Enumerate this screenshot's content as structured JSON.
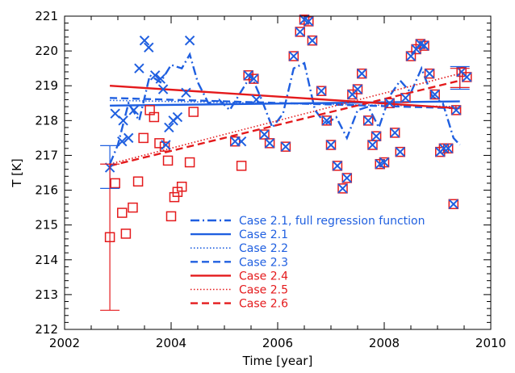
{
  "chart_data": {
    "type": "scatter",
    "xlabel": "Time [year]",
    "ylabel": "T [K]",
    "xlim": [
      2002,
      2010
    ],
    "ylim": [
      212,
      221
    ],
    "xticks": [
      2002,
      2004,
      2006,
      2008,
      2010
    ],
    "yticks": [
      212,
      213,
      214,
      215,
      216,
      217,
      218,
      219,
      220,
      221
    ],
    "colors": {
      "blue": "#1f5fe0",
      "red": "#e41a1c"
    },
    "error_bars": [
      {
        "color": "blue",
        "x": 2002.85,
        "low": 216.05,
        "high": 217.28
      },
      {
        "color": "red",
        "x": 2002.85,
        "low": 212.55,
        "high": 216.75
      },
      {
        "color": "blue",
        "x": 2009.42,
        "low": 218.9,
        "high": 219.55
      },
      {
        "color": "red",
        "x": 2009.42,
        "low": 218.95,
        "high": 219.5
      }
    ],
    "markers": {
      "blue_x": [
        [
          2002.85,
          216.65
        ],
        [
          2002.95,
          218.2
        ],
        [
          2003.08,
          217.4
        ],
        [
          2003.1,
          218.0
        ],
        [
          2003.2,
          217.5
        ],
        [
          2003.3,
          218.3
        ],
        [
          2003.4,
          219.5
        ],
        [
          2003.5,
          220.3
        ],
        [
          2003.58,
          220.1
        ],
        [
          2003.7,
          219.3
        ],
        [
          2003.8,
          219.2
        ],
        [
          2003.85,
          218.9
        ],
        [
          2003.9,
          217.3
        ],
        [
          2003.96,
          217.8
        ],
        [
          2004.04,
          218.0
        ],
        [
          2004.12,
          218.1
        ],
        [
          2004.28,
          218.8
        ],
        [
          2004.35,
          220.3
        ],
        [
          2005.2,
          217.4
        ],
        [
          2005.32,
          217.4
        ],
        [
          2005.45,
          219.3
        ],
        [
          2005.55,
          219.2
        ],
        [
          2005.6,
          218.6
        ],
        [
          2005.75,
          217.6
        ],
        [
          2005.85,
          217.35
        ],
        [
          2006.15,
          217.25
        ],
        [
          2006.3,
          219.85
        ],
        [
          2006.42,
          220.55
        ],
        [
          2006.5,
          220.9
        ],
        [
          2006.58,
          220.85
        ],
        [
          2006.65,
          220.3
        ],
        [
          2006.82,
          218.85
        ],
        [
          2006.92,
          218.0
        ],
        [
          2007.0,
          217.3
        ],
        [
          2007.12,
          216.7
        ],
        [
          2007.22,
          216.05
        ],
        [
          2007.3,
          216.35
        ],
        [
          2007.4,
          218.75
        ],
        [
          2007.5,
          218.9
        ],
        [
          2007.58,
          219.35
        ],
        [
          2007.7,
          218.0
        ],
        [
          2007.78,
          217.3
        ],
        [
          2007.85,
          217.55
        ],
        [
          2007.92,
          216.75
        ],
        [
          2008.0,
          216.8
        ],
        [
          2008.1,
          218.5
        ],
        [
          2008.2,
          217.65
        ],
        [
          2008.3,
          217.1
        ],
        [
          2008.4,
          218.65
        ],
        [
          2008.5,
          219.85
        ],
        [
          2008.6,
          220.05
        ],
        [
          2008.68,
          220.2
        ],
        [
          2008.75,
          220.15
        ],
        [
          2008.85,
          219.35
        ],
        [
          2008.95,
          218.75
        ],
        [
          2009.05,
          217.1
        ],
        [
          2009.12,
          217.2
        ],
        [
          2009.2,
          217.2
        ],
        [
          2009.3,
          215.6
        ],
        [
          2009.35,
          218.3
        ],
        [
          2009.45,
          219.4
        ],
        [
          2009.55,
          219.25
        ]
      ],
      "red_square": [
        [
          2002.85,
          214.65
        ],
        [
          2002.95,
          216.2
        ],
        [
          2003.08,
          215.35
        ],
        [
          2003.15,
          214.75
        ],
        [
          2003.28,
          215.5
        ],
        [
          2003.38,
          216.25
        ],
        [
          2003.48,
          217.5
        ],
        [
          2003.6,
          218.3
        ],
        [
          2003.68,
          218.1
        ],
        [
          2003.78,
          217.35
        ],
        [
          2003.88,
          217.25
        ],
        [
          2003.94,
          216.85
        ],
        [
          2004.0,
          215.25
        ],
        [
          2004.06,
          215.8
        ],
        [
          2004.12,
          215.95
        ],
        [
          2004.2,
          216.1
        ],
        [
          2004.35,
          216.8
        ],
        [
          2004.42,
          218.25
        ],
        [
          2005.2,
          217.4
        ],
        [
          2005.32,
          216.7
        ],
        [
          2005.45,
          219.3
        ],
        [
          2005.55,
          219.2
        ],
        [
          2005.75,
          217.6
        ],
        [
          2005.85,
          217.35
        ],
        [
          2006.15,
          217.25
        ],
        [
          2006.3,
          219.85
        ],
        [
          2006.42,
          220.55
        ],
        [
          2006.5,
          220.9
        ],
        [
          2006.58,
          220.85
        ],
        [
          2006.65,
          220.3
        ],
        [
          2006.82,
          218.85
        ],
        [
          2006.92,
          218.0
        ],
        [
          2007.0,
          217.3
        ],
        [
          2007.12,
          216.7
        ],
        [
          2007.22,
          216.05
        ],
        [
          2007.3,
          216.35
        ],
        [
          2007.4,
          218.75
        ],
        [
          2007.5,
          218.9
        ],
        [
          2007.58,
          219.35
        ],
        [
          2007.7,
          218.0
        ],
        [
          2007.78,
          217.3
        ],
        [
          2007.85,
          217.55
        ],
        [
          2007.92,
          216.75
        ],
        [
          2008.0,
          216.8
        ],
        [
          2008.1,
          218.5
        ],
        [
          2008.2,
          217.65
        ],
        [
          2008.3,
          217.1
        ],
        [
          2008.4,
          218.65
        ],
        [
          2008.5,
          219.85
        ],
        [
          2008.6,
          220.05
        ],
        [
          2008.68,
          220.2
        ],
        [
          2008.75,
          220.15
        ],
        [
          2008.85,
          219.35
        ],
        [
          2008.95,
          218.75
        ],
        [
          2009.05,
          217.1
        ],
        [
          2009.12,
          217.2
        ],
        [
          2009.2,
          217.2
        ],
        [
          2009.3,
          215.6
        ],
        [
          2009.35,
          218.3
        ],
        [
          2009.45,
          219.4
        ],
        [
          2009.55,
          219.25
        ]
      ]
    },
    "series": [
      {
        "name": "Case 2.1, full regression function",
        "color": "blue",
        "style": "dashdot",
        "kind": "curve",
        "x": [
          2002.85,
          2003.0,
          2003.2,
          2003.4,
          2003.6,
          2003.8,
          2004.0,
          2004.2,
          2004.35,
          2004.5,
          2004.7,
          2004.9,
          2005.1,
          2005.3,
          2005.5,
          2005.7,
          2005.9,
          2006.1,
          2006.3,
          2006.5,
          2006.7,
          2006.9,
          2007.1,
          2007.3,
          2007.5,
          2007.7,
          2007.9,
          2008.1,
          2008.3,
          2008.5,
          2008.7,
          2008.9,
          2009.1,
          2009.3,
          2009.42
        ],
        "y": [
          216.75,
          217.3,
          218.5,
          218.0,
          219.3,
          219.1,
          219.6,
          219.5,
          219.9,
          219.1,
          218.5,
          218.6,
          218.3,
          218.8,
          219.3,
          218.6,
          217.8,
          218.2,
          219.5,
          219.65,
          218.3,
          217.9,
          218.1,
          217.5,
          218.3,
          218.4,
          217.8,
          218.7,
          219.15,
          218.8,
          219.5,
          218.7,
          218.5,
          217.5,
          217.3
        ]
      },
      {
        "name": "Case 2.1",
        "color": "blue",
        "style": "solid",
        "kind": "trend",
        "x": [
          2002.85,
          2009.42
        ],
        "y": [
          218.43,
          218.55
        ]
      },
      {
        "name": "Case 2.2",
        "color": "blue",
        "style": "dotted",
        "kind": "trend",
        "x": [
          2002.85,
          2009.42
        ],
        "y": [
          218.58,
          218.4
        ]
      },
      {
        "name": "Case 2.3",
        "color": "blue",
        "style": "dashed",
        "kind": "trend",
        "x": [
          2002.85,
          2009.42
        ],
        "y": [
          218.65,
          218.35
        ]
      },
      {
        "name": "Case 2.4",
        "color": "red",
        "style": "solid",
        "kind": "trend",
        "x": [
          2002.85,
          2009.42
        ],
        "y": [
          219.0,
          218.35
        ]
      },
      {
        "name": "Case 2.5",
        "color": "red",
        "style": "dotted",
        "kind": "trend",
        "x": [
          2002.85,
          2009.42
        ],
        "y": [
          216.75,
          219.35
        ]
      },
      {
        "name": "Case 2.6",
        "color": "red",
        "style": "dashed",
        "kind": "trend",
        "x": [
          2002.85,
          2009.42
        ],
        "y": [
          216.7,
          219.15
        ]
      }
    ],
    "legend_position": "bottom-center"
  }
}
